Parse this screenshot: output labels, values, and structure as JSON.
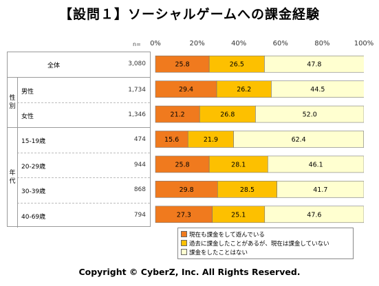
{
  "title": "【設問１】ソーシャルゲームへの課金経験",
  "n_label": "n=",
  "copyright": "Copyright © CyberZ, Inc. All Rights Reserved.",
  "colors": {
    "s1": "#f07a1e",
    "s2": "#fdc000",
    "s3": "#ffffd0",
    "border": "#888888"
  },
  "groups": [
    {
      "label": "性別",
      "rows": [
        1,
        2
      ]
    },
    {
      "label": "年代",
      "rows": [
        3,
        4,
        5,
        6
      ]
    }
  ],
  "chart_data": {
    "type": "bar",
    "orientation": "horizontal",
    "stacked": true,
    "xlim": [
      0,
      100
    ],
    "x_ticks": [
      "0%",
      "20%",
      "40%",
      "60%",
      "80%",
      "100%"
    ],
    "categories": [
      "全体",
      "男性",
      "女性",
      "15-19歳",
      "20-29歳",
      "30-39歳",
      "40-69歳"
    ],
    "n": [
      "3,080",
      "1,734",
      "1,346",
      "474",
      "944",
      "868",
      "794"
    ],
    "series": [
      {
        "name": "現在も課金をして遊んでいる",
        "values": [
          25.8,
          29.4,
          21.2,
          15.6,
          25.8,
          29.8,
          27.3
        ]
      },
      {
        "name": "過去に課金したことがあるが、現在は課金していない",
        "values": [
          26.5,
          26.2,
          26.8,
          21.9,
          28.1,
          28.5,
          25.1
        ]
      },
      {
        "name": "課金をしたことはない",
        "values": [
          47.8,
          44.5,
          52.0,
          62.4,
          46.1,
          41.7,
          47.6
        ]
      }
    ],
    "labels": [
      [
        "25.8",
        "26.5",
        "47.8"
      ],
      [
        "29.4",
        "26.2",
        "44.5"
      ],
      [
        "21.2",
        "26.8",
        "52.0"
      ],
      [
        "15.6",
        "21.9",
        "62.4"
      ],
      [
        "25.8",
        "28.1",
        "46.1"
      ],
      [
        "29.8",
        "28.5",
        "41.7"
      ],
      [
        "27.3",
        "25.1",
        "47.6"
      ]
    ],
    "legend": "bottom"
  }
}
